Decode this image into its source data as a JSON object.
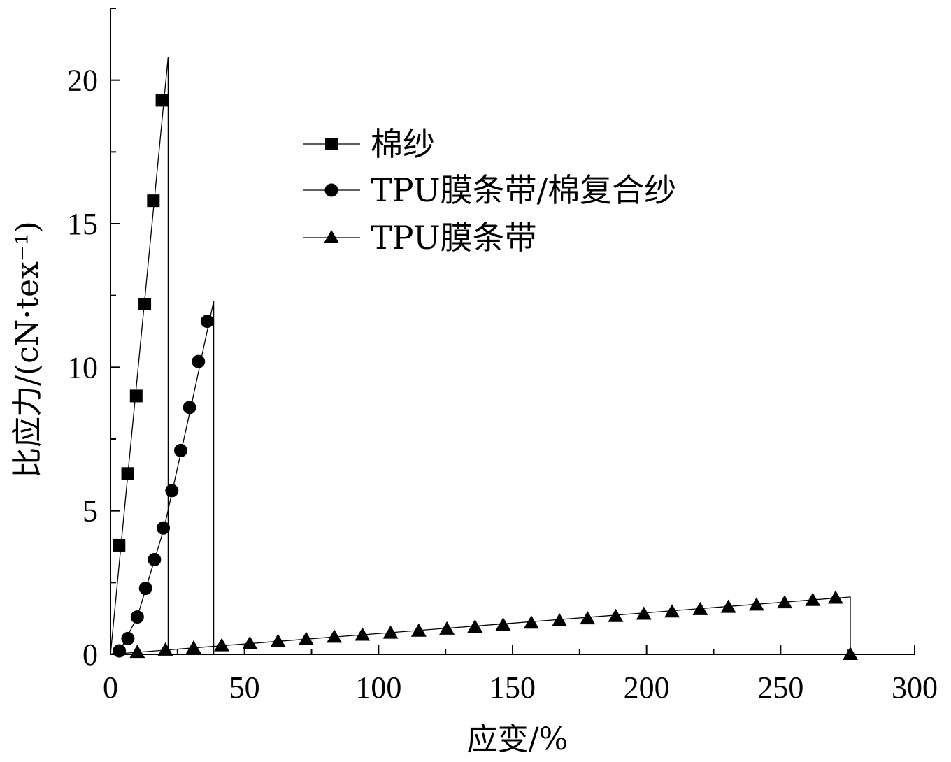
{
  "chart_data": {
    "type": "line",
    "xlabel": "应变/%",
    "ylabel": "比应力/(cN·tex⁻¹)",
    "xlim": [
      0,
      300
    ],
    "ylim": [
      0,
      22.5
    ],
    "x_ticks": [
      "0",
      "50",
      "100",
      "150",
      "200",
      "250",
      "300"
    ],
    "y_ticks": [
      "0",
      "5",
      "10",
      "15",
      "20"
    ],
    "grid": false,
    "legend_position": "top-center",
    "series": [
      {
        "name": "棉纱",
        "marker": "square",
        "line": [
          [
            0,
            0
          ],
          [
            21.5,
            20.8
          ],
          [
            21.5,
            0
          ]
        ],
        "points": [
          [
            3.2,
            3.8
          ],
          [
            6.4,
            6.3
          ],
          [
            9.6,
            9.0
          ],
          [
            12.8,
            12.2
          ],
          [
            16.0,
            15.8
          ],
          [
            19.2,
            19.3
          ]
        ]
      },
      {
        "name": "TPU膜条带/棉复合纱",
        "marker": "circle",
        "line": [
          [
            0,
            0
          ],
          [
            3.5,
            0.12
          ],
          [
            10,
            1.3
          ],
          [
            20,
            4.4
          ],
          [
            30,
            8.6
          ],
          [
            35,
            10.8
          ],
          [
            38.5,
            12.3
          ],
          [
            38.5,
            0
          ]
        ],
        "points": [
          [
            3.3,
            0.12
          ],
          [
            6.5,
            0.55
          ],
          [
            10.0,
            1.3
          ],
          [
            13.1,
            2.3
          ],
          [
            16.4,
            3.3
          ],
          [
            19.7,
            4.4
          ],
          [
            22.9,
            5.7
          ],
          [
            26.2,
            7.1
          ],
          [
            29.5,
            8.6
          ],
          [
            32.8,
            10.2
          ],
          [
            36.1,
            11.6
          ]
        ]
      },
      {
        "name": "TPU膜条带",
        "marker": "triangle",
        "line": [
          [
            0,
            0
          ],
          [
            276,
            2.0
          ],
          [
            276,
            0
          ]
        ],
        "points": [
          [
            10,
            0.07
          ],
          [
            20.5,
            0.15
          ],
          [
            31,
            0.22
          ],
          [
            41.5,
            0.3
          ],
          [
            52,
            0.37
          ],
          [
            62.5,
            0.45
          ],
          [
            73,
            0.52
          ],
          [
            83.5,
            0.6
          ],
          [
            94,
            0.67
          ],
          [
            104.5,
            0.74
          ],
          [
            115,
            0.81
          ],
          [
            125.5,
            0.88
          ],
          [
            136,
            0.95
          ],
          [
            146.5,
            1.02
          ],
          [
            157,
            1.09
          ],
          [
            167.5,
            1.17
          ],
          [
            178,
            1.24
          ],
          [
            188.5,
            1.32
          ],
          [
            199,
            1.4
          ],
          [
            209.5,
            1.48
          ],
          [
            220,
            1.56
          ],
          [
            230.5,
            1.64
          ],
          [
            241,
            1.72
          ],
          [
            251.5,
            1.8
          ],
          [
            262,
            1.88
          ],
          [
            270.5,
            1.96
          ],
          [
            276,
            0
          ]
        ]
      }
    ]
  }
}
